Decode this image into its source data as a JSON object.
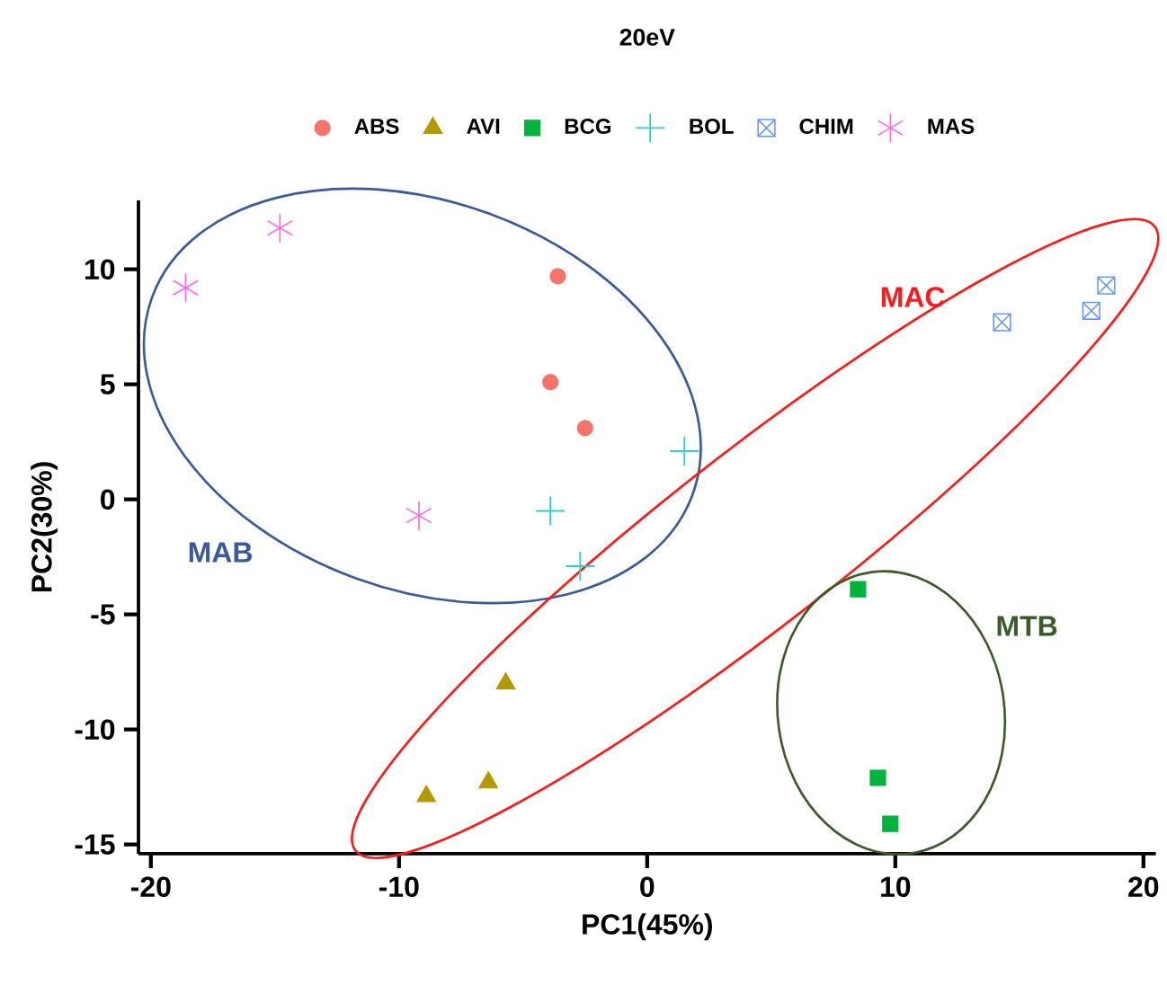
{
  "chart_data": {
    "type": "scatter",
    "title": "20eV",
    "xlabel": "PC1(45%)",
    "ylabel": "PC2(30%)",
    "xlim": [
      -20.5,
      20.5
    ],
    "ylim": [
      -15.4,
      13
    ],
    "xticks": [
      -20,
      -10,
      0,
      10,
      20
    ],
    "yticks": [
      -15,
      -10,
      -5,
      0,
      5,
      10
    ],
    "grid": false,
    "legend": "top",
    "series": [
      {
        "name": "ABS",
        "color": "#f4736b",
        "marker": "circle",
        "x": [
          -3.6,
          -3.9,
          -2.5
        ],
        "values": [
          9.7,
          5.1,
          3.1
        ]
      },
      {
        "name": "AVI",
        "color": "#b39a00",
        "marker": "triangle",
        "x": [
          -5.7,
          -6.4,
          -8.9
        ],
        "values": [
          -8.0,
          -12.3,
          -12.9
        ]
      },
      {
        "name": "BCG",
        "color": "#00b33c",
        "marker": "square",
        "x": [
          8.5,
          9.3,
          9.8
        ],
        "values": [
          -3.9,
          -12.1,
          -14.1
        ]
      },
      {
        "name": "BOL",
        "color": "#33cccc",
        "marker": "cross",
        "x": [
          1.5,
          -3.9,
          -2.7
        ],
        "values": [
          2.1,
          -0.5,
          -2.9
        ]
      },
      {
        "name": "CHIM",
        "color": "#6699ff",
        "x": [
          14.3,
          17.9,
          18.5
        ],
        "values": [
          7.7,
          8.2,
          9.3
        ]
      },
      {
        "name": "MAS",
        "color": "#ff66ee",
        "x": [
          -18.6,
          -14.8,
          -9.2
        ],
        "values": [
          9.2,
          11.8,
          -0.7
        ]
      }
    ],
    "annotations": [
      "MAB",
      "MAC",
      "MTB"
    ]
  }
}
